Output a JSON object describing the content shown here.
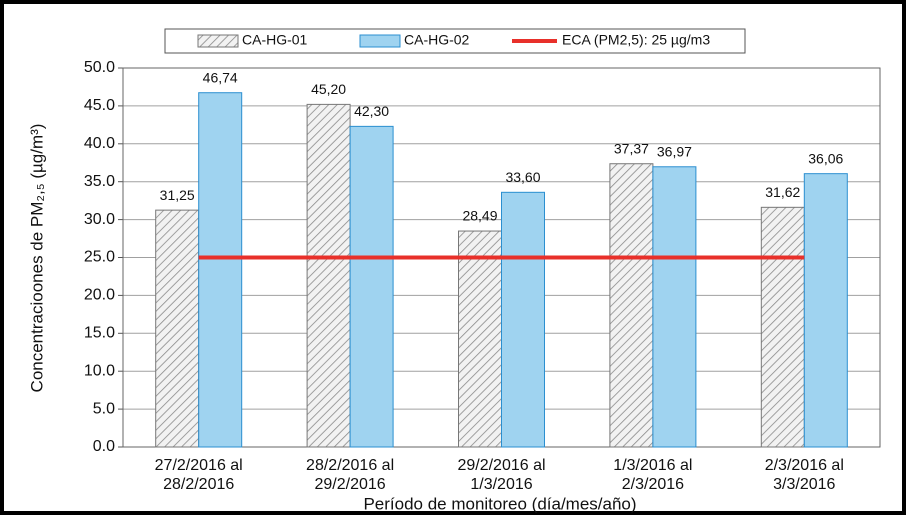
{
  "chart_data": {
    "type": "bar",
    "y_label": "Concentracioones de PM₂,₅ (µg/m³)",
    "x_label": "Período de monitoreo (día/mes/año)",
    "categories": [
      [
        "27/2/2016 al",
        "28/2/2016"
      ],
      [
        "28/2/2016 al",
        "29/2/2016"
      ],
      [
        "29/2/2016 al",
        "1/3/2016"
      ],
      [
        "1/3/2016 al",
        "2/3/2016"
      ],
      [
        "2/3/2016 al",
        "3/3/2016"
      ]
    ],
    "series": [
      {
        "name": "CA-HG-01",
        "color": "#d0d0d0",
        "hatch": true,
        "values": [
          31.25,
          45.2,
          28.49,
          37.37,
          31.62
        ],
        "value_labels": [
          "31,25",
          "45,20",
          "28,49",
          "37,37",
          "31,62"
        ]
      },
      {
        "name": "CA-HG-02",
        "color": "#9fd3f0",
        "hatch": false,
        "values": [
          46.74,
          42.3,
          33.6,
          36.97,
          36.06
        ],
        "value_labels": [
          "46,74",
          "42,30",
          "33,60",
          "36,97",
          "36,06"
        ]
      }
    ],
    "reference_line": {
      "name": "ECA (PM2,5): 25 µg/m3",
      "value": 25,
      "color": "#e8302a"
    },
    "ylim": [
      0,
      50
    ],
    "yticks": [
      {
        "value": 0,
        "label": "0.0"
      },
      {
        "value": 5,
        "label": "5.0"
      },
      {
        "value": 10,
        "label": "10.0"
      },
      {
        "value": 15,
        "label": "15.0"
      },
      {
        "value": 20,
        "label": "20.0"
      },
      {
        "value": 25,
        "label": "25.0"
      },
      {
        "value": 30,
        "label": "30.0"
      },
      {
        "value": 35,
        "label": "35.0"
      },
      {
        "value": 40,
        "label": "40.0"
      },
      {
        "value": 45,
        "label": "45.0"
      },
      {
        "value": 50,
        "label": "50.0"
      }
    ],
    "grid": true
  }
}
